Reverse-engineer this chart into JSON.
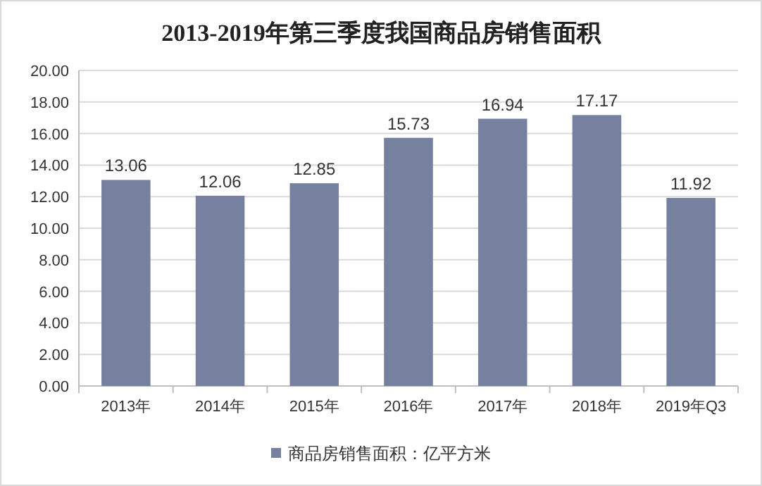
{
  "chart_data": {
    "type": "bar",
    "title": "2013-2019年第三季度我国商品房销售面积",
    "categories": [
      "2013年",
      "2014年",
      "2015年",
      "2016年",
      "2017年",
      "2018年",
      "2019年Q3"
    ],
    "series": [
      {
        "name": "商品房销售面积：亿平方米",
        "color": "#76809f",
        "values": [
          13.06,
          12.06,
          12.85,
          15.73,
          16.94,
          17.17,
          11.92
        ]
      }
    ],
    "ylim": [
      0,
      20
    ],
    "yticks": [
      {
        "value": 0,
        "label": "0.00"
      },
      {
        "value": 2,
        "label": "2.00"
      },
      {
        "value": 4,
        "label": "4.00"
      },
      {
        "value": 6,
        "label": "6.00"
      },
      {
        "value": 8,
        "label": "8.00"
      },
      {
        "value": 10,
        "label": "10.00"
      },
      {
        "value": 12,
        "label": "12.00"
      },
      {
        "value": 14,
        "label": "14.00"
      },
      {
        "value": 16,
        "label": "16.00"
      },
      {
        "value": 18,
        "label": "18.00"
      },
      {
        "value": 20,
        "label": "20.00"
      }
    ],
    "grid": "y",
    "legend": "bottom",
    "data_labels": true
  }
}
